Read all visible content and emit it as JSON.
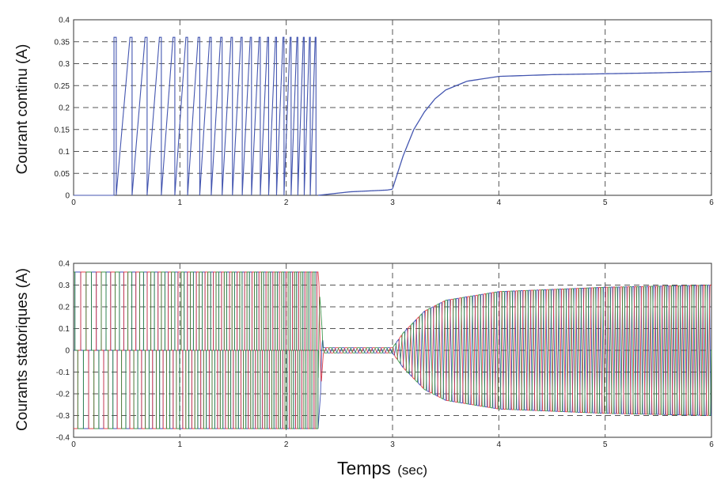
{
  "chart_data": [
    {
      "type": "line",
      "ylabel": "Courant continu (A)",
      "xlim": [
        0,
        6
      ],
      "ylim": [
        0,
        0.4
      ],
      "xticks": [
        "0",
        "1",
        "2",
        "3",
        "4",
        "5",
        "6"
      ],
      "yticks": [
        "0",
        "0.05",
        "0.1",
        "0.15",
        "0.2",
        "0.25",
        "0.3",
        "0.35",
        "0.4"
      ],
      "grid": true,
      "series": [
        {
          "color": "#4456b0",
          "segments": [
            {
              "x_range": [
                0,
                2.3
              ],
              "pattern": "switching pulses between 0 and 0.36",
              "pulse_high": 0.36,
              "pulse_low": 0
            },
            {
              "x": [
                2.3,
                2.6,
                2.95,
                3.0
              ],
              "y": [
                0.0,
                0.008,
                0.012,
                0.014
              ]
            },
            {
              "x": [
                3.0,
                3.1,
                3.2,
                3.3,
                3.4,
                3.5,
                3.7,
                4.0,
                4.5,
                5.0,
                5.5,
                6.0
              ],
              "y": [
                0.015,
                0.09,
                0.15,
                0.19,
                0.22,
                0.24,
                0.26,
                0.271,
                0.275,
                0.277,
                0.279,
                0.282
              ]
            }
          ]
        }
      ]
    },
    {
      "type": "line",
      "ylabel": "Courants statoriques (A)",
      "xlabel_main": "Temps",
      "xlabel_unit": "(sec)",
      "xlim": [
        0,
        6
      ],
      "ylim": [
        -0.4,
        0.4
      ],
      "xticks": [
        "0",
        "1",
        "2",
        "3",
        "4",
        "5",
        "6"
      ],
      "yticks": [
        "-0.4",
        "-0.3",
        "-0.2",
        "-0.1",
        "0",
        "0.1",
        "0.2",
        "0.3",
        "0.4"
      ],
      "grid": true,
      "series": [
        {
          "color": "#2f3fb0",
          "phase_deg": 0
        },
        {
          "color": "#e0303a",
          "phase_deg": 120
        },
        {
          "color": "#2a8c3a",
          "phase_deg": 240
        }
      ],
      "envelope": {
        "x": [
          0,
          2.3,
          2.35,
          3.0,
          3.1,
          3.3,
          3.5,
          4.0,
          4.5,
          5.0,
          6.0
        ],
        "y": [
          0.36,
          0.36,
          0.012,
          0.012,
          0.08,
          0.18,
          0.23,
          0.27,
          0.28,
          0.29,
          0.3
        ]
      }
    }
  ]
}
